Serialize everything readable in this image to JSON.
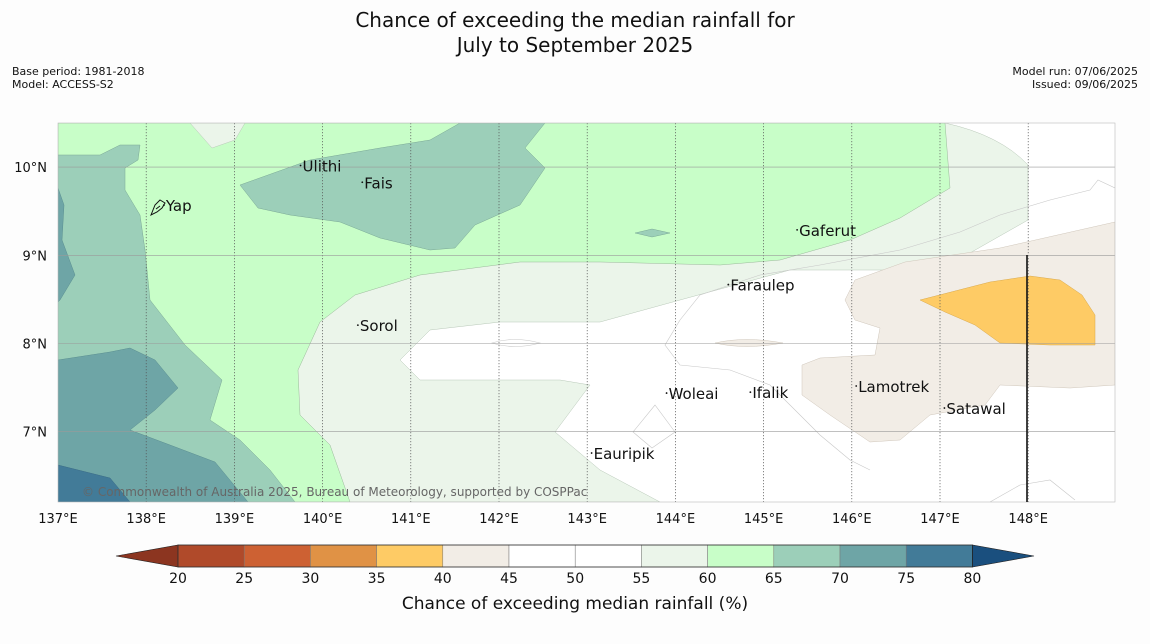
{
  "title_line1": "Chance of exceeding the median rainfall for",
  "title_line2": "July to September 2025",
  "meta_left": [
    "Base period: 1981-2018",
    "Model: ACCESS-S2"
  ],
  "meta_right": [
    "Model run: 07/06/2025",
    "Issued: 09/06/2025"
  ],
  "copyright": "© Commonwealth of Australia 2025, Bureau of Meteorology, supported by COSPPac",
  "lon_ticks": [
    "137°E",
    "138°E",
    "139°E",
    "140°E",
    "141°E",
    "142°E",
    "143°E",
    "144°E",
    "145°E",
    "146°E",
    "147°E",
    "148°E"
  ],
  "lat_ticks": [
    "10°N",
    "9°N",
    "8°N",
    "7°N"
  ],
  "places": [
    {
      "name": "Yap",
      "lon": 138.2,
      "lat": 9.5
    },
    {
      "name": "Ulithi",
      "lon": 139.75,
      "lat": 9.95
    },
    {
      "name": "Fais",
      "lon": 140.45,
      "lat": 9.76
    },
    {
      "name": "Gaferut",
      "lon": 145.38,
      "lat": 9.22
    },
    {
      "name": "Faraulep",
      "lon": 144.6,
      "lat": 8.6
    },
    {
      "name": "Sorol",
      "lon": 140.4,
      "lat": 8.14
    },
    {
      "name": "Lamotrek",
      "lon": 146.05,
      "lat": 7.45
    },
    {
      "name": "Satawal",
      "lon": 147.05,
      "lat": 7.2
    },
    {
      "name": "Woleai",
      "lon": 143.9,
      "lat": 7.37
    },
    {
      "name": "Ifalik",
      "lon": 144.85,
      "lat": 7.38
    },
    {
      "name": "Eauripik",
      "lon": 143.05,
      "lat": 6.69
    }
  ],
  "colorbar": {
    "title": "Chance of exceeding median rainfall (%)",
    "labels": [
      "20",
      "25",
      "30",
      "35",
      "40",
      "45",
      "50",
      "55",
      "60",
      "65",
      "70",
      "75",
      "80"
    ],
    "colors": [
      "#b04a2a",
      "#cd6133",
      "#e09245",
      "#fecb65",
      "#f2ede6",
      "#ffffff",
      "#ffffff",
      "#ebf5ea",
      "#c8fec8",
      "#9ccfb9",
      "#6ea5a6",
      "#427b98"
    ],
    "under_color": "#8c3520",
    "over_color": "#1a4f7e"
  },
  "chart_data": {
    "type": "heatmap",
    "x_range": [
      137,
      149
    ],
    "y_range": [
      6.2,
      10.5
    ],
    "xlabel": "",
    "ylabel": "",
    "grid": true,
    "units": "%"
  }
}
